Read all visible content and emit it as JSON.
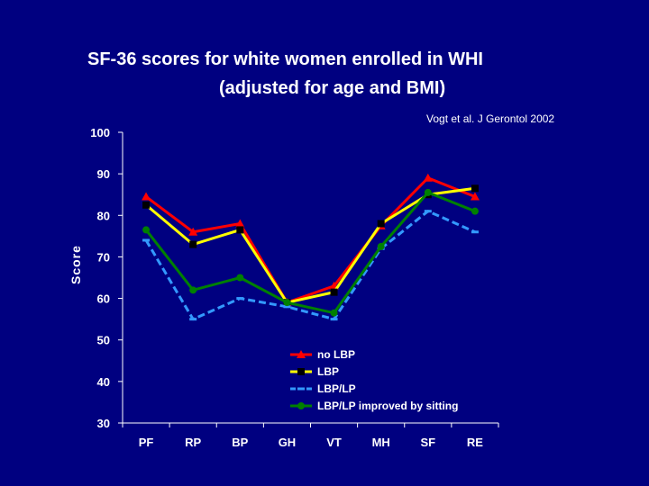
{
  "chart_data": {
    "type": "line",
    "title_line1": "SF-36 scores for white women enrolled in WHI",
    "title_line2": "(adjusted for age and BMI)",
    "citation": "Vogt et al. J Gerontol 2002",
    "xlabel": "",
    "ylabel": "Score",
    "ylim": [
      30,
      100
    ],
    "yticks": [
      "30",
      "40",
      "50",
      "60",
      "70",
      "80",
      "90",
      "100"
    ],
    "categories": [
      "PF",
      "RP",
      "BP",
      "GH",
      "VT",
      "MH",
      "SF",
      "RE"
    ],
    "series": [
      {
        "name": "no LBP",
        "color": "#FF0000",
        "marker": "triangle",
        "dash": "",
        "values": [
          84.5,
          76,
          78,
          59,
          63,
          77.5,
          89,
          84.5
        ]
      },
      {
        "name": "LBP",
        "color": "#FFFF00",
        "marker": "square",
        "dash": "",
        "values": [
          82.5,
          73,
          76.5,
          59,
          61.5,
          78,
          85,
          86.5
        ]
      },
      {
        "name": "LBP/LP",
        "color": "#3399FF",
        "marker": "dash",
        "dash": "8 4",
        "values": [
          74,
          55,
          60,
          58,
          55,
          72,
          81,
          76
        ]
      },
      {
        "name": "LBP/LP improved by sitting",
        "color": "#008000",
        "marker": "circle",
        "dash": "",
        "values": [
          76.5,
          62,
          65,
          59,
          56.5,
          72.5,
          85.5,
          81
        ]
      }
    ],
    "legend_position": "bottom-center",
    "grid": false
  },
  "colors": {
    "background": "#000080",
    "text": "#FFFFFF",
    "axis": "#FFFFFF"
  }
}
